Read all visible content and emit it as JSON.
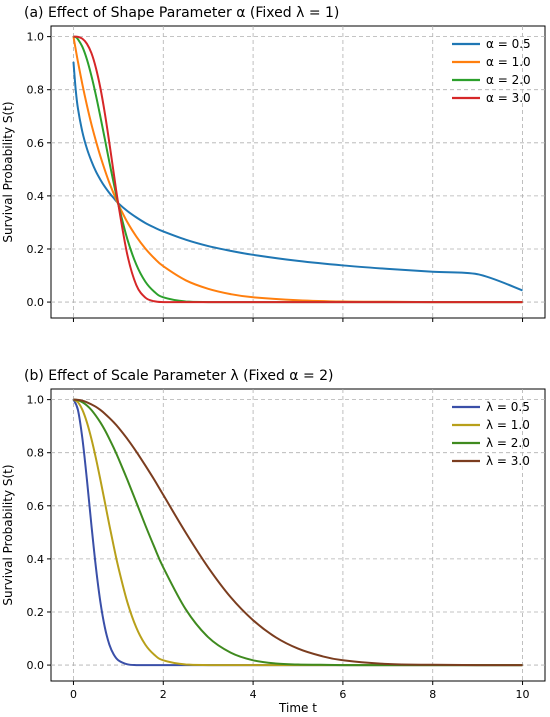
{
  "chart_data": [
    {
      "type": "line",
      "title": "(a) Effect of Shape Parameter α (Fixed λ = 1)",
      "xlabel": "",
      "ylabel": "Survival Probability S(t)",
      "xlim": [
        -0.5,
        10.5
      ],
      "ylim": [
        -0.06,
        1.04
      ],
      "grid": true,
      "legend_position": "top-right",
      "xticks": [
        0,
        2,
        4,
        6,
        8,
        10
      ],
      "xtick_labels_shown": false,
      "yticks": [
        0.0,
        0.2,
        0.4,
        0.6,
        0.8,
        1.0
      ],
      "ytick_labels": [
        "0.0",
        "0.2",
        "0.4",
        "0.6",
        "0.8",
        "1.0"
      ],
      "x": [
        0,
        0.05,
        0.1,
        0.2,
        0.3,
        0.4,
        0.5,
        0.6,
        0.7,
        0.8,
        0.9,
        1.0,
        1.2,
        1.4,
        1.6,
        1.8,
        2.0,
        2.5,
        3.0,
        3.5,
        4.0,
        5.0,
        6.0,
        7.0,
        8.0,
        9.0,
        10.0
      ],
      "series": [
        {
          "name": "α = 0.5",
          "color": "#1f77b4",
          "values": [
            0.905,
            0.8,
            0.729,
            0.64,
            0.578,
            0.531,
            0.492,
            0.461,
            0.434,
            0.411,
            0.391,
            0.372,
            0.343,
            0.319,
            0.298,
            0.281,
            0.266,
            0.235,
            0.211,
            0.193,
            0.178,
            0.155,
            0.138,
            0.125,
            0.114,
            0.105,
            0.044
          ]
        },
        {
          "name": "α = 1.0",
          "color": "#ff7f0e",
          "values": [
            1.0,
            0.952,
            0.905,
            0.819,
            0.741,
            0.67,
            0.607,
            0.549,
            0.497,
            0.449,
            0.407,
            0.368,
            0.301,
            0.247,
            0.202,
            0.165,
            0.135,
            0.082,
            0.05,
            0.03,
            0.018,
            0.007,
            0.002,
            0.001,
            0.0,
            0.0,
            0.0
          ]
        },
        {
          "name": "α = 2.0",
          "color": "#2ca02c",
          "values": [
            1.0,
            0.998,
            0.99,
            0.961,
            0.914,
            0.852,
            0.779,
            0.698,
            0.613,
            0.527,
            0.445,
            0.368,
            0.237,
            0.141,
            0.077,
            0.039,
            0.018,
            0.002,
            0.0,
            0.0,
            0.0,
            0.0,
            0.0,
            0.0,
            0.0,
            0.0,
            0.0
          ]
        },
        {
          "name": "α = 3.0",
          "color": "#d62728",
          "values": [
            1.0,
            1.0,
            0.999,
            0.992,
            0.973,
            0.938,
            0.882,
            0.806,
            0.71,
            0.599,
            0.482,
            0.368,
            0.178,
            0.064,
            0.017,
            0.003,
            0.0,
            0.0,
            0.0,
            0.0,
            0.0,
            0.0,
            0.0,
            0.0,
            0.0,
            0.0,
            0.0
          ]
        }
      ]
    },
    {
      "type": "line",
      "title": "(b) Effect of Scale Parameter λ (Fixed α = 2)",
      "xlabel": "Time t",
      "ylabel": "Survival Probability S(t)",
      "xlim": [
        -0.5,
        10.5
      ],
      "ylim": [
        -0.06,
        1.04
      ],
      "grid": true,
      "legend_position": "top-right",
      "xticks": [
        0,
        2,
        4,
        6,
        8,
        10
      ],
      "xtick_labels": [
        "0",
        "2",
        "4",
        "6",
        "8",
        "10"
      ],
      "yticks": [
        0.0,
        0.2,
        0.4,
        0.6,
        0.8,
        1.0
      ],
      "ytick_labels": [
        "0.0",
        "0.2",
        "0.4",
        "0.6",
        "0.8",
        "1.0"
      ],
      "x": [
        0,
        0.1,
        0.2,
        0.3,
        0.4,
        0.5,
        0.6,
        0.7,
        0.8,
        0.9,
        1.0,
        1.2,
        1.4,
        1.6,
        1.8,
        2.0,
        2.5,
        3.0,
        3.5,
        4.0,
        4.5,
        5.0,
        5.5,
        6.0,
        7.0,
        8.0,
        9.0,
        10.0
      ],
      "series": [
        {
          "name": "λ = 0.5",
          "color": "#3a4fa8",
          "values": [
            1.0,
            0.961,
            0.852,
            0.698,
            0.527,
            0.368,
            0.237,
            0.141,
            0.077,
            0.039,
            0.018,
            0.003,
            0.0,
            0.0,
            0.0,
            0.0,
            0.0,
            0.0,
            0.0,
            0.0,
            0.0,
            0.0,
            0.0,
            0.0,
            0.0,
            0.0,
            0.0,
            0.0
          ]
        },
        {
          "name": "λ = 1.0",
          "color": "#b8a01a",
          "values": [
            1.0,
            0.99,
            0.961,
            0.914,
            0.852,
            0.779,
            0.698,
            0.613,
            0.527,
            0.445,
            0.368,
            0.237,
            0.141,
            0.077,
            0.039,
            0.018,
            0.002,
            0.0,
            0.0,
            0.0,
            0.0,
            0.0,
            0.0,
            0.0,
            0.0,
            0.0,
            0.0,
            0.0
          ]
        },
        {
          "name": "λ = 2.0",
          "color": "#3f8a1f",
          "values": [
            1.0,
            0.998,
            0.99,
            0.978,
            0.961,
            0.939,
            0.914,
            0.885,
            0.852,
            0.817,
            0.779,
            0.698,
            0.613,
            0.527,
            0.445,
            0.368,
            0.21,
            0.105,
            0.047,
            0.018,
            0.006,
            0.002,
            0.001,
            0.0,
            0.0,
            0.0,
            0.0,
            0.0
          ]
        },
        {
          "name": "λ = 3.0",
          "color": "#7b3d1f",
          "values": [
            1.0,
            0.999,
            0.996,
            0.99,
            0.982,
            0.973,
            0.961,
            0.947,
            0.931,
            0.914,
            0.895,
            0.852,
            0.804,
            0.752,
            0.698,
            0.641,
            0.499,
            0.368,
            0.256,
            0.169,
            0.105,
            0.062,
            0.035,
            0.018,
            0.004,
            0.001,
            0.0,
            0.0
          ]
        }
      ]
    }
  ]
}
